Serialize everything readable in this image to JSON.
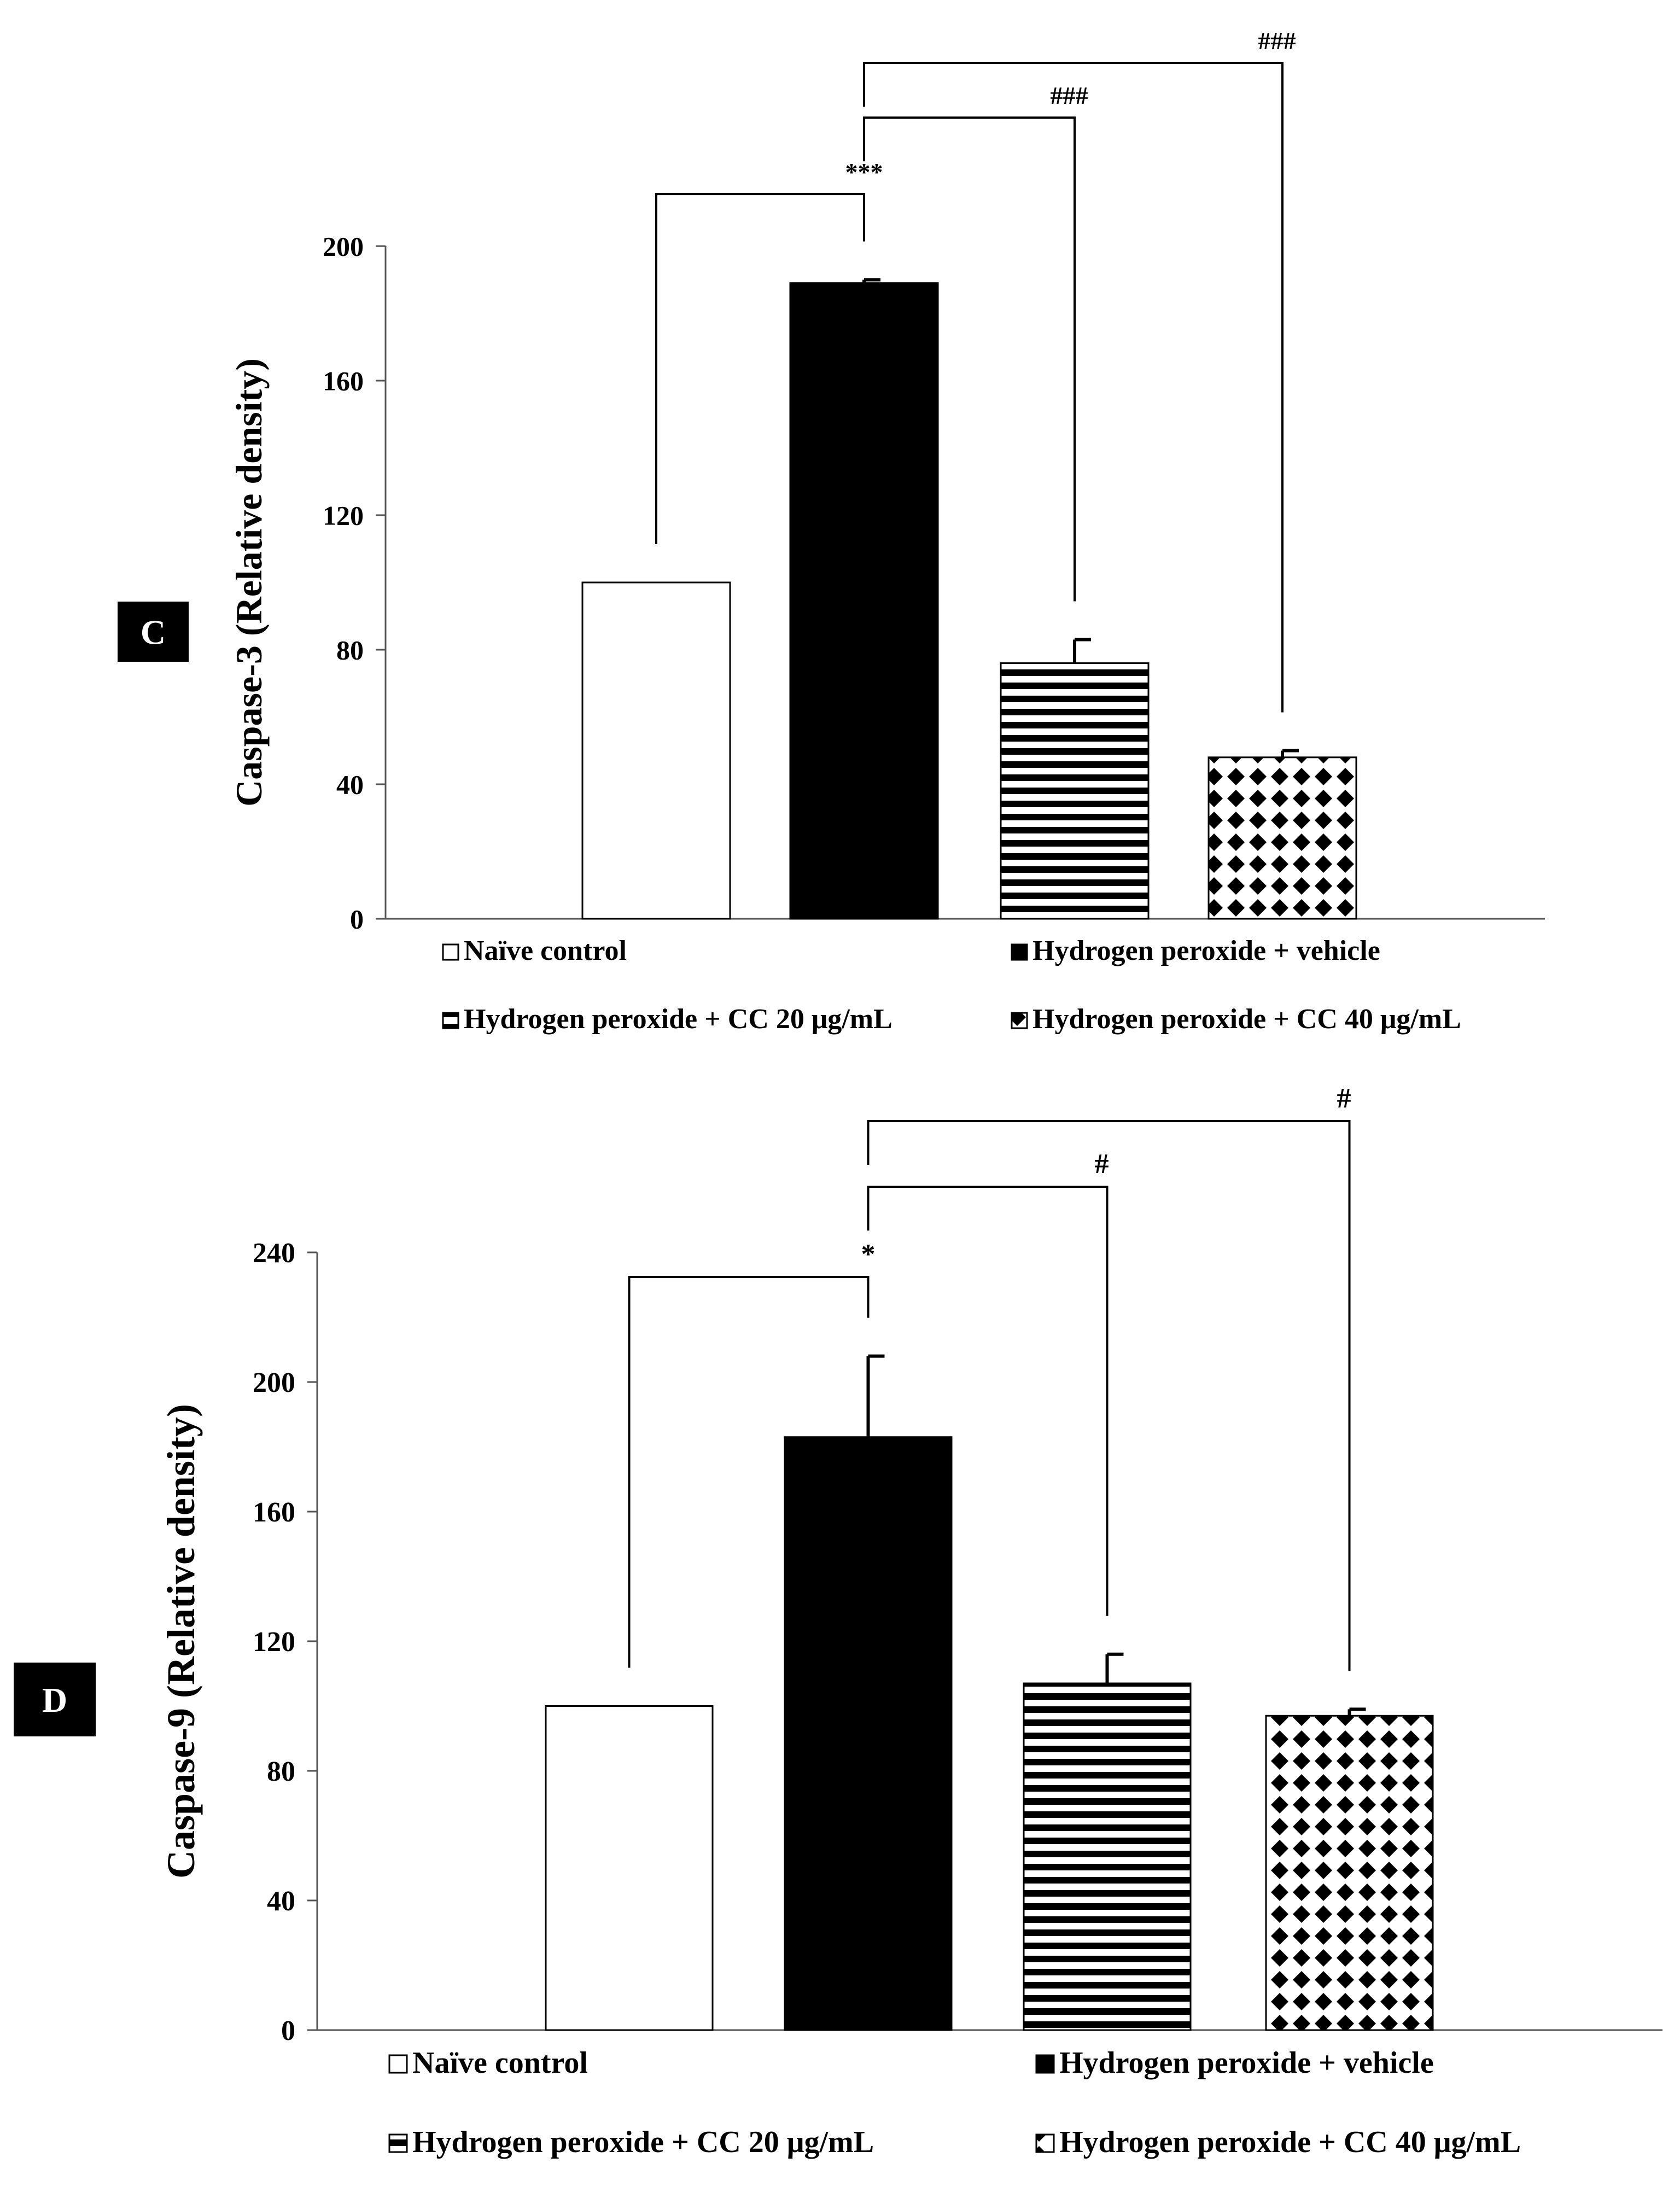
{
  "legend_items": [
    "Naïve control",
    "Hydrogen peroxide + vehicle",
    "Hydrogen peroxide + CC 20 μg/mL",
    "Hydrogen peroxide + CC 40 μg/mL"
  ],
  "chart_data": [
    {
      "type": "bar",
      "panel_label": "C",
      "ylabel": "Caspase-3 (Relative density)",
      "ylim": [
        0,
        200
      ],
      "yticks": [
        0,
        40,
        80,
        120,
        160,
        200
      ],
      "categories": [
        "Naïve control",
        "Hydrogen peroxide + vehicle",
        "Hydrogen peroxide + CC 20 μg/mL",
        "Hydrogen peroxide + CC 40 μg/mL"
      ],
      "values": [
        100,
        189,
        76,
        48
      ],
      "errors": [
        0,
        1,
        7,
        2
      ],
      "legend_position": "bottom",
      "grid": false,
      "annotations": [
        {
          "text": "***",
          "from": 0,
          "to": 1
        },
        {
          "text": "###",
          "from": 1,
          "to": 2
        },
        {
          "text": "###",
          "from": 1,
          "to": 3
        }
      ]
    },
    {
      "type": "bar",
      "panel_label": "D",
      "ylabel": "Caspase-9 (Relative density)",
      "ylim": [
        0,
        240
      ],
      "yticks": [
        0,
        40,
        80,
        120,
        160,
        200,
        240
      ],
      "categories": [
        "Naïve control",
        "Hydrogen peroxide + vehicle",
        "Hydrogen peroxide + CC 20 μg/mL",
        "Hydrogen peroxide + CC 40 μg/mL"
      ],
      "values": [
        100,
        183,
        107,
        97
      ],
      "errors": [
        0,
        25,
        9,
        2
      ],
      "legend_position": "bottom",
      "grid": false,
      "annotations": [
        {
          "text": "*",
          "from": 0,
          "to": 1
        },
        {
          "text": "#",
          "from": 1,
          "to": 2
        },
        {
          "text": "#",
          "from": 1,
          "to": 3
        }
      ]
    }
  ]
}
